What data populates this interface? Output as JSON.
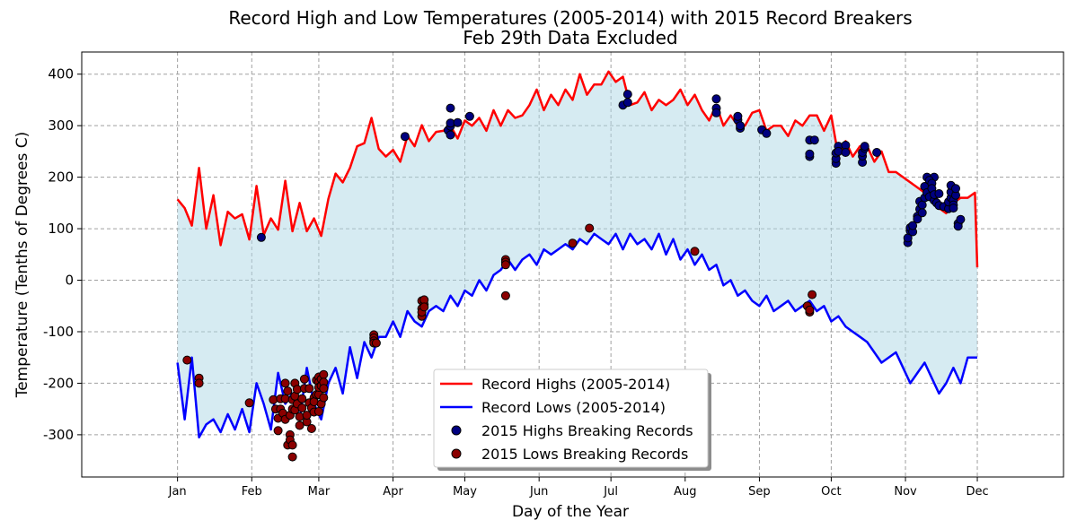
{
  "chart_data": {
    "type": "line",
    "title": "Record High and Low Temperatures (2005-2014) with 2015 Record Breakers",
    "subtitle": "Feb 29th Data Excluded",
    "xlabel": "Day of the Year",
    "ylabel": "Temperature (Tenths of Degrees C)",
    "xlim": [
      -40,
      370
    ],
    "ylim": [
      -382,
      443
    ],
    "grid": true,
    "legend_position": "lower-center",
    "month_ticks": [
      {
        "label": "Jan",
        "day": 0
      },
      {
        "label": "Feb",
        "day": 31
      },
      {
        "label": "Mar",
        "day": 59
      },
      {
        "label": "Apr",
        "day": 90
      },
      {
        "label": "May",
        "day": 120
      },
      {
        "label": "Jun",
        "day": 151
      },
      {
        "label": "Jul",
        "day": 181
      },
      {
        "label": "Aug",
        "day": 212
      },
      {
        "label": "Sep",
        "day": 243
      },
      {
        "label": "Oct",
        "day": 273
      },
      {
        "label": "Nov",
        "day": 304
      },
      {
        "label": "Dec",
        "day": 334
      }
    ],
    "y_ticks": [
      -300,
      -200,
      -100,
      0,
      100,
      200,
      300,
      400
    ],
    "fill_color": "#add8e6",
    "series": [
      {
        "name": "Record Highs (2005-2014)",
        "color": "#ff0000",
        "x": [
          0,
          3,
          6,
          9,
          12,
          15,
          18,
          21,
          24,
          27,
          30,
          33,
          36,
          39,
          42,
          45,
          48,
          51,
          54,
          57,
          60,
          63,
          66,
          69,
          72,
          75,
          78,
          81,
          84,
          87,
          90,
          93,
          96,
          99,
          102,
          105,
          108,
          111,
          114,
          117,
          120,
          123,
          126,
          129,
          132,
          135,
          138,
          141,
          144,
          147,
          150,
          153,
          156,
          159,
          162,
          165,
          168,
          171,
          174,
          177,
          180,
          183,
          186,
          189,
          192,
          195,
          198,
          201,
          204,
          207,
          210,
          213,
          216,
          219,
          222,
          225,
          228,
          231,
          234,
          237,
          240,
          243,
          246,
          249,
          252,
          255,
          258,
          261,
          264,
          267,
          270,
          273,
          276,
          279,
          282,
          285,
          288,
          291,
          294,
          297,
          300,
          303,
          306,
          309,
          312,
          315,
          318,
          321,
          324,
          327,
          330,
          333,
          334
        ],
        "values": [
          157,
          140,
          106,
          218,
          100,
          165,
          68,
          133,
          120,
          128,
          79,
          183,
          88,
          120,
          98,
          193,
          95,
          150,
          95,
          120,
          86,
          158,
          207,
          190,
          218,
          260,
          266,
          315,
          255,
          240,
          253,
          230,
          280,
          260,
          301,
          270,
          288,
          290,
          300,
          275,
          310,
          300,
          315,
          290,
          330,
          300,
          330,
          315,
          320,
          340,
          370,
          330,
          360,
          340,
          370,
          350,
          400,
          360,
          380,
          380,
          405,
          385,
          395,
          340,
          345,
          365,
          330,
          350,
          340,
          350,
          370,
          340,
          360,
          330,
          310,
          340,
          300,
          320,
          300,
          300,
          325,
          330,
          290,
          300,
          300,
          280,
          310,
          300,
          320,
          320,
          290,
          320,
          240,
          270,
          240,
          260,
          260,
          230,
          250,
          210,
          210,
          200,
          190,
          180,
          170,
          160,
          140,
          130,
          150,
          160,
          160,
          170,
          25
        ]
      },
      {
        "name": "Record Lows (2005-2014)",
        "color": "#0000ff",
        "x": [
          0,
          3,
          6,
          9,
          12,
          15,
          18,
          21,
          24,
          27,
          30,
          33,
          36,
          39,
          42,
          45,
          48,
          51,
          54,
          57,
          60,
          63,
          66,
          69,
          72,
          75,
          78,
          81,
          84,
          87,
          90,
          93,
          96,
          99,
          102,
          105,
          108,
          111,
          114,
          117,
          120,
          123,
          126,
          129,
          132,
          135,
          138,
          141,
          144,
          147,
          150,
          153,
          156,
          159,
          162,
          165,
          168,
          171,
          174,
          177,
          180,
          183,
          186,
          189,
          192,
          195,
          198,
          201,
          204,
          207,
          210,
          213,
          216,
          219,
          222,
          225,
          228,
          231,
          234,
          237,
          240,
          243,
          246,
          249,
          252,
          255,
          258,
          261,
          264,
          267,
          270,
          273,
          276,
          279,
          282,
          285,
          288,
          291,
          294,
          297,
          300,
          303,
          306,
          309,
          312,
          315,
          318,
          321,
          324,
          327,
          330,
          333,
          334
        ],
        "values": [
          -160,
          -270,
          -150,
          -305,
          -280,
          -270,
          -295,
          -260,
          -290,
          -250,
          -295,
          -200,
          -240,
          -290,
          -180,
          -240,
          -220,
          -270,
          -170,
          -240,
          -270,
          -200,
          -170,
          -220,
          -130,
          -190,
          -120,
          -150,
          -110,
          -110,
          -80,
          -110,
          -60,
          -80,
          -90,
          -60,
          -50,
          -60,
          -30,
          -50,
          -20,
          -30,
          0,
          -20,
          10,
          20,
          40,
          20,
          40,
          50,
          30,
          60,
          50,
          60,
          70,
          60,
          80,
          70,
          90,
          80,
          70,
          90,
          60,
          90,
          70,
          80,
          60,
          90,
          50,
          80,
          40,
          60,
          30,
          50,
          20,
          30,
          -10,
          0,
          -30,
          -20,
          -40,
          -50,
          -30,
          -60,
          -50,
          -40,
          -60,
          -50,
          -40,
          -60,
          -50,
          -80,
          -70,
          -90,
          -100,
          -110,
          -120,
          -140,
          -160,
          -150,
          -140,
          -170,
          -200,
          -180,
          -160,
          -190,
          -220,
          -200,
          -170,
          -200,
          -150,
          -150,
          -150
        ]
      }
    ],
    "scatter_series": [
      {
        "name": "2015 Highs Breaking Records",
        "color": "#000080",
        "points": [
          [
            35,
            83
          ],
          [
            95,
            279
          ],
          [
            113,
            291
          ],
          [
            114,
            299
          ],
          [
            114,
            334
          ],
          [
            114,
            305
          ],
          [
            114,
            282
          ],
          [
            117,
            306
          ],
          [
            122,
            318
          ],
          [
            186,
            340
          ],
          [
            188,
            345
          ],
          [
            188,
            361
          ],
          [
            225,
            352
          ],
          [
            225,
            334
          ],
          [
            225,
            325
          ],
          [
            234,
            311
          ],
          [
            234,
            318
          ],
          [
            235,
            295
          ],
          [
            235,
            300
          ],
          [
            244,
            292
          ],
          [
            246,
            285
          ],
          [
            264,
            272
          ],
          [
            264,
            240
          ],
          [
            264,
            245
          ],
          [
            266,
            272
          ],
          [
            275,
            227
          ],
          [
            275,
            236
          ],
          [
            275,
            247
          ],
          [
            276,
            260
          ],
          [
            276,
            250
          ],
          [
            279,
            262
          ],
          [
            279,
            248
          ],
          [
            286,
            229
          ],
          [
            286,
            241
          ],
          [
            286,
            248
          ],
          [
            287,
            256
          ],
          [
            287,
            260
          ],
          [
            292,
            248
          ],
          [
            316,
            200
          ],
          [
            305,
            73
          ],
          [
            305,
            82
          ],
          [
            306,
            96
          ],
          [
            306,
            102
          ],
          [
            307,
            94
          ],
          [
            307,
            106
          ],
          [
            309,
            124
          ],
          [
            309,
            119
          ],
          [
            310,
            138
          ],
          [
            310,
            153
          ],
          [
            311,
            146
          ],
          [
            311,
            131
          ],
          [
            312,
            160
          ],
          [
            312,
            182
          ],
          [
            313,
            200
          ],
          [
            313,
            170
          ],
          [
            314,
            162
          ],
          [
            314,
            194
          ],
          [
            315,
            188
          ],
          [
            315,
            178
          ],
          [
            316,
            155
          ],
          [
            316,
            166
          ],
          [
            317,
            150
          ],
          [
            318,
            168
          ],
          [
            318,
            145
          ],
          [
            320,
            143
          ],
          [
            322,
            139
          ],
          [
            322,
            152
          ],
          [
            323,
            160
          ],
          [
            323,
            171
          ],
          [
            323,
            184
          ],
          [
            324,
            155
          ],
          [
            324,
            146
          ],
          [
            324,
            140
          ],
          [
            325,
            165
          ],
          [
            325,
            178
          ],
          [
            326,
            110
          ],
          [
            326,
            105
          ],
          [
            327,
            118
          ]
        ]
      },
      {
        "name": "2015 Lows Breaking Records",
        "color": "#8b0000",
        "points": [
          [
            4,
            -155
          ],
          [
            9,
            -190
          ],
          [
            9,
            -200
          ],
          [
            30,
            -238
          ],
          [
            40,
            -232
          ],
          [
            41,
            -250
          ],
          [
            42,
            -268
          ],
          [
            42,
            -292
          ],
          [
            43,
            -250
          ],
          [
            43,
            -230
          ],
          [
            44,
            -258
          ],
          [
            45,
            -270
          ],
          [
            45,
            -200
          ],
          [
            45,
            -230
          ],
          [
            46,
            -215
          ],
          [
            46,
            -320
          ],
          [
            47,
            -300
          ],
          [
            47,
            -310
          ],
          [
            47,
            -262
          ],
          [
            48,
            -250
          ],
          [
            48,
            -232
          ],
          [
            48,
            -320
          ],
          [
            48,
            -343
          ],
          [
            49,
            -252
          ],
          [
            49,
            -225
          ],
          [
            49,
            -200
          ],
          [
            50,
            -240
          ],
          [
            50,
            -212
          ],
          [
            51,
            -265
          ],
          [
            51,
            -282
          ],
          [
            52,
            -230
          ],
          [
            52,
            -248
          ],
          [
            53,
            -210
          ],
          [
            53,
            -192
          ],
          [
            54,
            -275
          ],
          [
            54,
            -262
          ],
          [
            55,
            -210
          ],
          [
            55,
            -238
          ],
          [
            56,
            -248
          ],
          [
            56,
            -288
          ],
          [
            57,
            -256
          ],
          [
            57,
            -228
          ],
          [
            57,
            -236
          ],
          [
            58,
            -222
          ],
          [
            58,
            -194
          ],
          [
            59,
            -222
          ],
          [
            59,
            -188
          ],
          [
            59,
            -198
          ],
          [
            59,
            -208
          ],
          [
            59,
            -255
          ],
          [
            60,
            -240
          ],
          [
            60,
            -205
          ],
          [
            60,
            -192
          ],
          [
            61,
            -183
          ],
          [
            61,
            -198
          ],
          [
            61,
            -210
          ],
          [
            61,
            -228
          ],
          [
            82,
            -106
          ],
          [
            82,
            -112
          ],
          [
            82,
            -118
          ],
          [
            82,
            -122
          ],
          [
            83,
            -122
          ],
          [
            102,
            -55
          ],
          [
            102,
            -70
          ],
          [
            102,
            -40
          ],
          [
            102,
            -62
          ],
          [
            103,
            -47
          ],
          [
            103,
            -38
          ],
          [
            103,
            -52
          ],
          [
            137,
            -30
          ],
          [
            137,
            40
          ],
          [
            137,
            35
          ],
          [
            137,
            30
          ],
          [
            165,
            72
          ],
          [
            172,
            101
          ],
          [
            216,
            56
          ],
          [
            263,
            -50
          ],
          [
            264,
            -62
          ],
          [
            264,
            -58
          ],
          [
            265,
            -28
          ]
        ]
      }
    ],
    "legend": [
      {
        "label": "Record Highs (2005-2014)",
        "kind": "line",
        "color": "#ff0000"
      },
      {
        "label": "Record Lows (2005-2014)",
        "kind": "line",
        "color": "#0000ff"
      },
      {
        "label": "2015 Highs Breaking Records",
        "kind": "marker",
        "color": "#000080"
      },
      {
        "label": "2015 Lows Breaking Records",
        "kind": "marker",
        "color": "#8b0000"
      }
    ]
  }
}
